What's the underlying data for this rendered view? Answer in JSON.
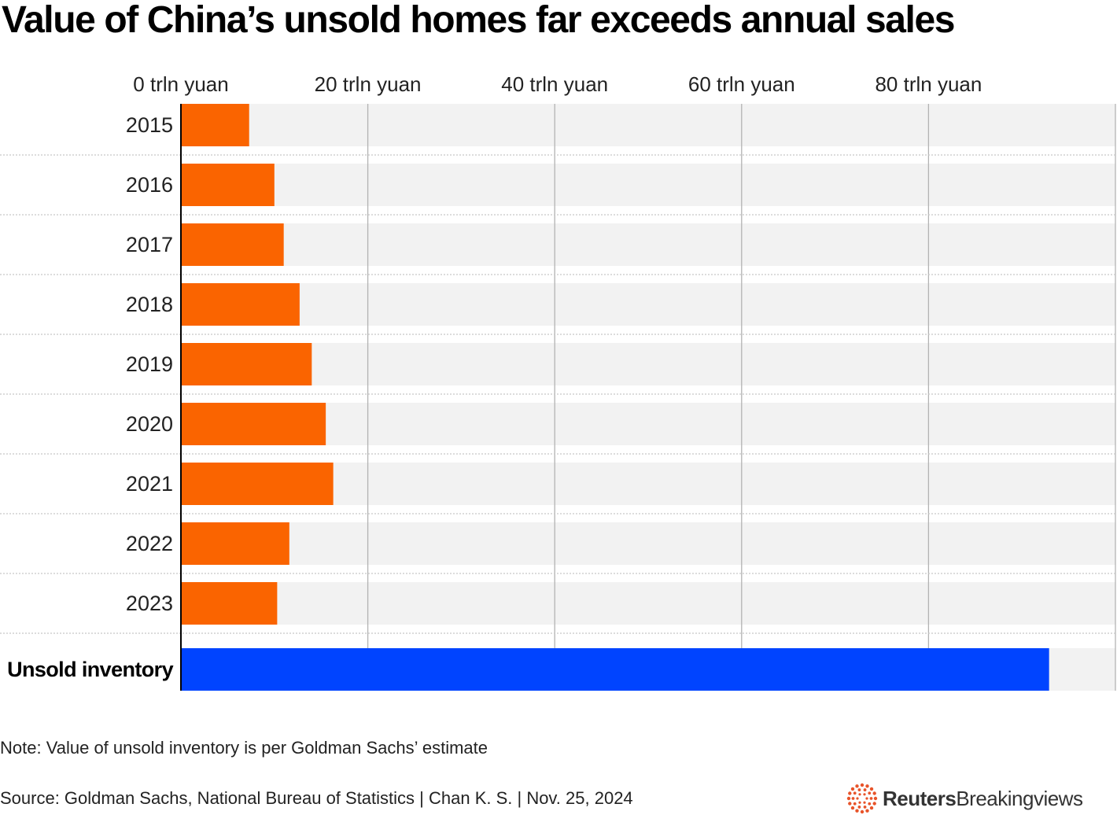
{
  "title": "Value of China’s unsold homes far exceeds annual sales",
  "chart_data": {
    "type": "bar",
    "orientation": "horizontal",
    "title": "Value of China’s unsold homes far exceeds annual sales",
    "categories": [
      "2015",
      "2016",
      "2017",
      "2018",
      "2019",
      "2020",
      "2021",
      "2022",
      "2023",
      "Unsold inventory"
    ],
    "values": [
      7.3,
      10.0,
      11.0,
      12.7,
      14.0,
      15.5,
      16.3,
      11.6,
      10.3,
      92.9
    ],
    "highlight_category": "Unsold inventory",
    "xlim": [
      0,
      100
    ],
    "x_ticks": [
      0,
      20,
      40,
      60,
      80
    ],
    "x_tick_labels": [
      "0 trln yuan",
      "20 trln yuan",
      "40 trln yuan",
      "60 trln yuan",
      "80 trln yuan"
    ],
    "xlabel": "",
    "ylabel": "",
    "grid": true,
    "colors": {
      "bar": "#fa6400",
      "highlight": "#0044ff",
      "background": "#f2f2f2",
      "gridline": "#b3b3b3",
      "separator": "#c8c8c8"
    }
  },
  "note": "Note: Value of unsold inventory is per Goldman Sachs’ estimate",
  "source": "Source: Goldman Sachs, National Bureau of Statistics | Chan K. S. | Nov. 25, 2024",
  "logo": {
    "brand": "Reuters",
    "product": "Breakingviews",
    "icon": "reuters-dots-icon",
    "color": "#e8542a"
  }
}
